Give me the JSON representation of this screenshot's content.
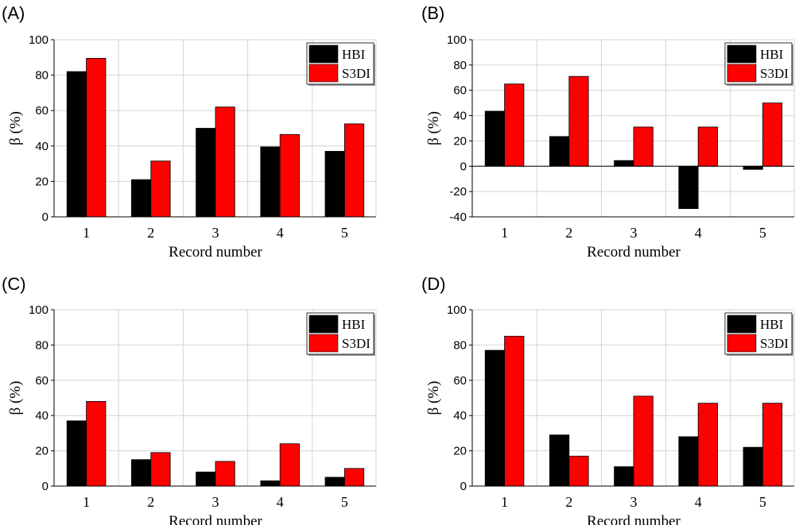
{
  "chart_data": [
    {
      "panel": "(A)",
      "type": "bar",
      "categories": [
        "1",
        "2",
        "3",
        "4",
        "5"
      ],
      "series": [
        {
          "name": "HBI",
          "values": [
            82,
            21,
            50,
            39.5,
            37
          ]
        },
        {
          "name": "S3DI",
          "values": [
            89.5,
            31.5,
            62,
            46.5,
            52.5
          ]
        }
      ],
      "xlabel": "Record number",
      "ylabel": "β (%)",
      "ylim": [
        0,
        100
      ],
      "yticks": [
        0,
        20,
        40,
        60,
        80,
        100
      ],
      "grid": true,
      "legend": "top-right"
    },
    {
      "panel": "(B)",
      "type": "bar",
      "categories": [
        "1",
        "2",
        "3",
        "4",
        "5"
      ],
      "series": [
        {
          "name": "HBI",
          "values": [
            43.5,
            23.5,
            4.5,
            -33.5,
            -2.5
          ]
        },
        {
          "name": "S3DI",
          "values": [
            65,
            71,
            31,
            31,
            50
          ]
        }
      ],
      "xlabel": "Record number",
      "ylabel": "β (%)",
      "ylim": [
        -40,
        100
      ],
      "yticks": [
        -40,
        -20,
        0,
        20,
        40,
        60,
        80,
        100
      ],
      "grid": true,
      "legend": "top-right"
    },
    {
      "panel": "(C)",
      "type": "bar",
      "categories": [
        "1",
        "2",
        "3",
        "4",
        "5"
      ],
      "series": [
        {
          "name": "HBI",
          "values": [
            37,
            15,
            8,
            3,
            5
          ]
        },
        {
          "name": "S3DI",
          "values": [
            48,
            19,
            14,
            24,
            10
          ]
        }
      ],
      "xlabel": "Record number",
      "ylabel": "β (%)",
      "ylim": [
        0,
        100
      ],
      "yticks": [
        0,
        20,
        40,
        60,
        80,
        100
      ],
      "grid": true,
      "legend": "top-right"
    },
    {
      "panel": "(D)",
      "type": "bar",
      "categories": [
        "1",
        "2",
        "3",
        "4",
        "5"
      ],
      "series": [
        {
          "name": "HBI",
          "values": [
            77,
            29,
            11,
            28,
            22
          ]
        },
        {
          "name": "S3DI",
          "values": [
            85,
            17,
            51,
            47,
            47
          ]
        }
      ],
      "xlabel": "Record number",
      "ylabel": "β (%)",
      "ylim": [
        0,
        100
      ],
      "yticks": [
        0,
        20,
        40,
        60,
        80,
        100
      ],
      "grid": true,
      "legend": "top-right"
    }
  ],
  "colors": {
    "HBI": "#000000",
    "S3DI": "#ff0000"
  }
}
